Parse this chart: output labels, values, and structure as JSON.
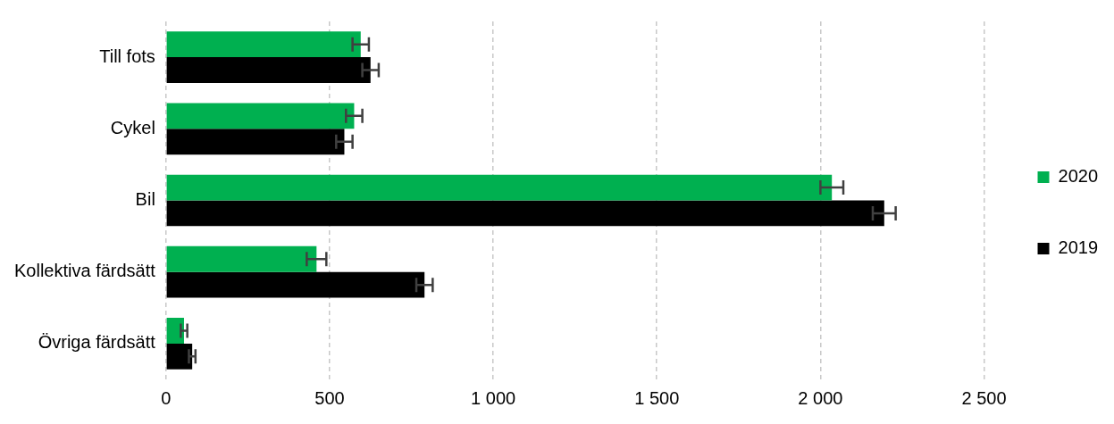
{
  "chart_data": {
    "type": "bar",
    "orientation": "horizontal",
    "categories": [
      "Till fots",
      "Cykel",
      "Bil",
      "Kollektiva färdsätt",
      "Övriga färdsätt"
    ],
    "series": [
      {
        "name": "2020",
        "color": "#00b050",
        "values": [
          595,
          575,
          2035,
          460,
          55
        ],
        "errors": [
          25,
          25,
          35,
          30,
          10
        ]
      },
      {
        "name": "2019",
        "color": "#000000",
        "values": [
          625,
          545,
          2195,
          790,
          80
        ],
        "errors": [
          25,
          25,
          35,
          25,
          10
        ]
      }
    ],
    "xlim": [
      0,
      2500
    ],
    "xticks": [
      0,
      500,
      {
        "value": 1000,
        "label": "1 000"
      },
      {
        "value": 1500,
        "label": "1 500"
      },
      {
        "value": 2000,
        "label": "2 000"
      },
      {
        "value": 2500,
        "label": "2 500"
      }
    ],
    "grid": "x",
    "legend": "right"
  }
}
